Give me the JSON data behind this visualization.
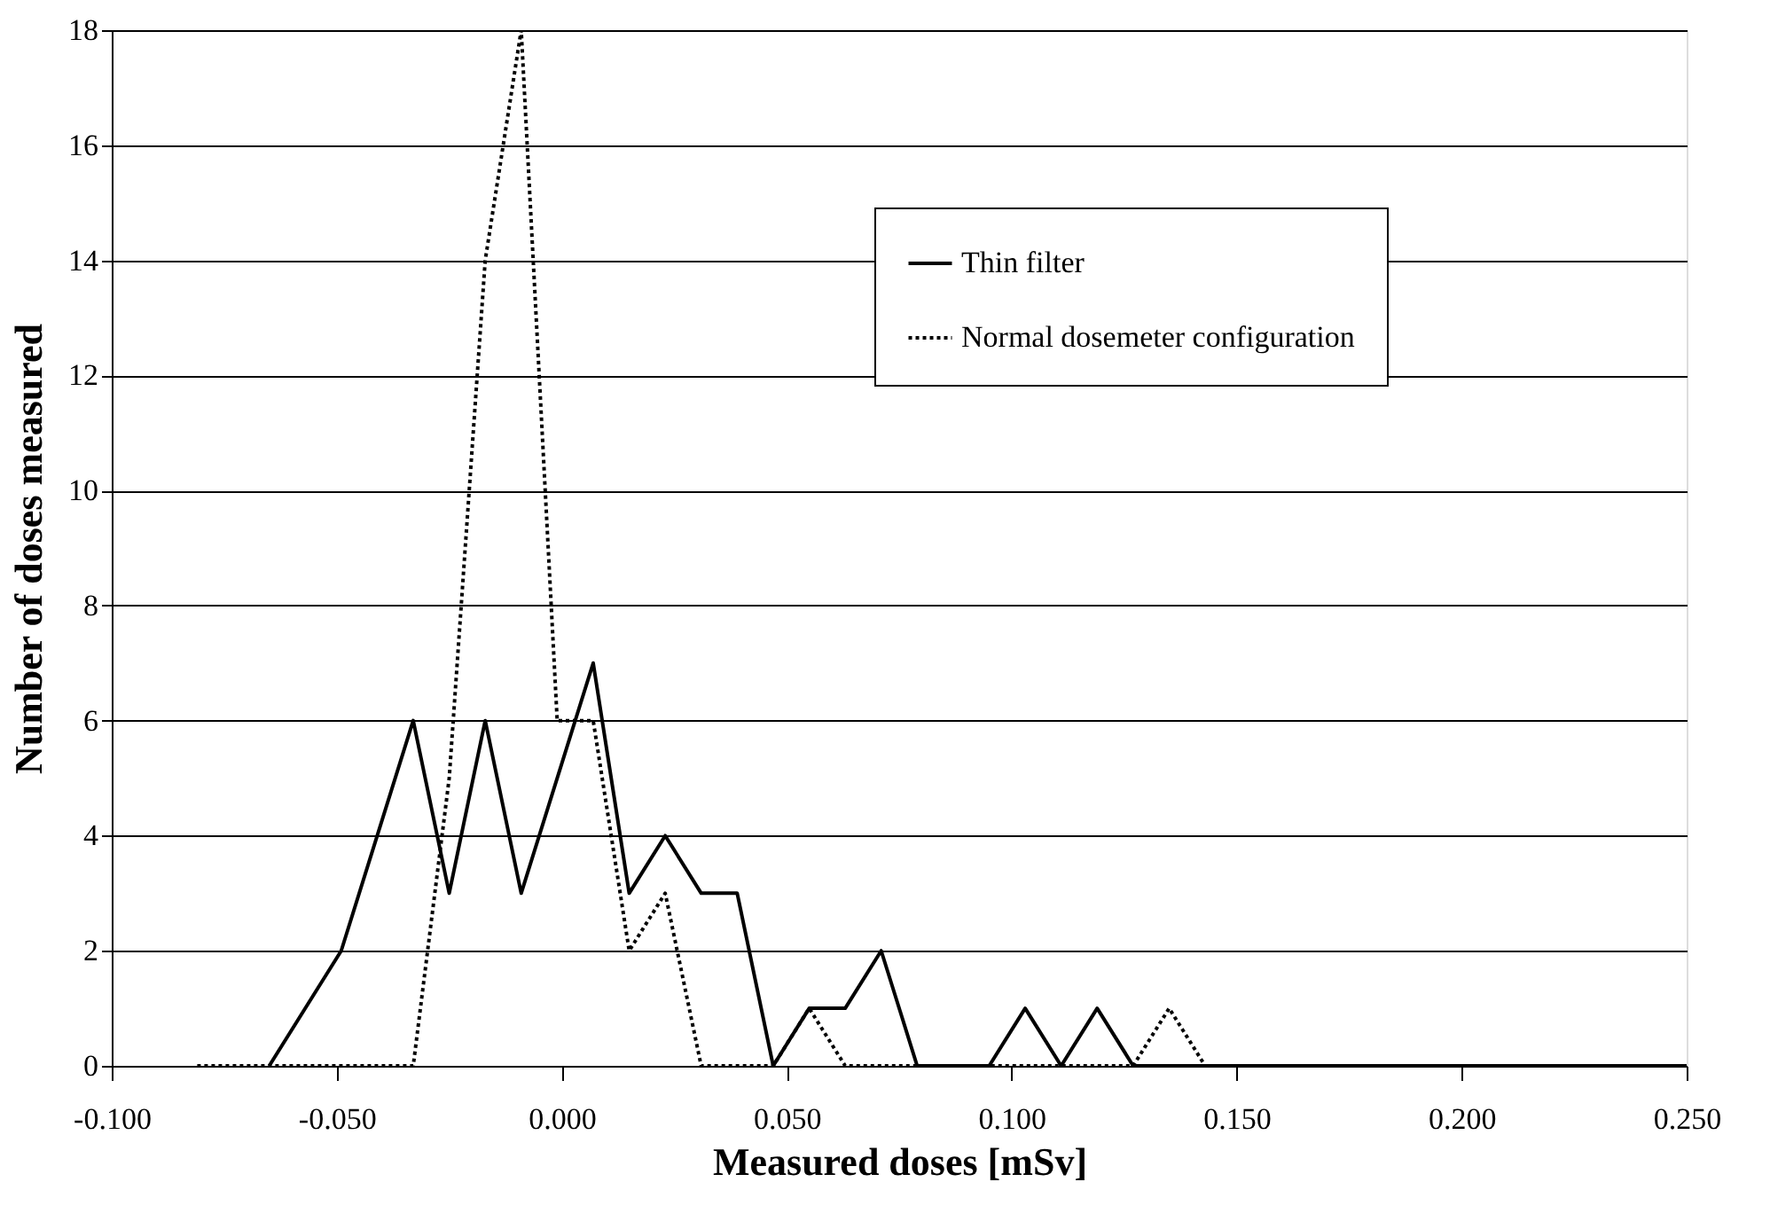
{
  "chart_data": {
    "type": "line",
    "xlabel": "Measured doses [mSv]",
    "ylabel": "Number of doses measured",
    "xlim": [
      -0.1,
      0.25
    ],
    "xticks": [
      {
        "value": -0.1,
        "label": "-0.100"
      },
      {
        "value": -0.05,
        "label": "-0.050"
      },
      {
        "value": 0,
        "label": "0.000"
      },
      {
        "value": 0.05,
        "label": "0.050"
      },
      {
        "value": 0.1,
        "label": "0.100"
      },
      {
        "value": 0.15,
        "label": "0.150"
      },
      {
        "value": 0.2,
        "label": "0.200"
      },
      {
        "value": 0.25,
        "label": "0.250"
      }
    ],
    "ylim": [
      0,
      18
    ],
    "yticks": [
      0,
      2,
      4,
      6,
      8,
      10,
      12,
      14,
      16,
      18
    ],
    "grid": "y",
    "legend": "top right",
    "marker": "none",
    "series": [
      {
        "name": "Thin filter",
        "color": "#000000",
        "line_style": "solid",
        "x": [
          -0.065,
          -0.049,
          -0.033,
          -0.025,
          -0.017,
          -0.009,
          0.007,
          0.015,
          0.023,
          0.031,
          0.039,
          0.047,
          0.055,
          0.063,
          0.071,
          0.079,
          0.095,
          0.103,
          0.111,
          0.119,
          0.127,
          0.25
        ],
        "values": [
          0,
          2,
          6,
          3,
          6,
          3,
          7,
          3,
          4,
          3,
          3,
          0,
          1,
          1,
          2,
          0,
          0,
          1,
          0,
          1,
          0,
          0
        ]
      },
      {
        "name": "Normal dosemeter configuration",
        "color": "#000000",
        "line_style": "dotted",
        "x": [
          -0.081,
          -0.033,
          -0.025,
          -0.017,
          -0.009,
          -0.001,
          0.007,
          0.015,
          0.023,
          0.031,
          0.047,
          0.055,
          0.063,
          0.127,
          0.135,
          0.143,
          0.25
        ],
        "values": [
          0,
          0,
          5,
          14,
          18,
          6,
          6,
          2,
          3,
          0,
          0,
          1,
          0,
          0,
          1,
          0,
          0
        ]
      }
    ]
  }
}
